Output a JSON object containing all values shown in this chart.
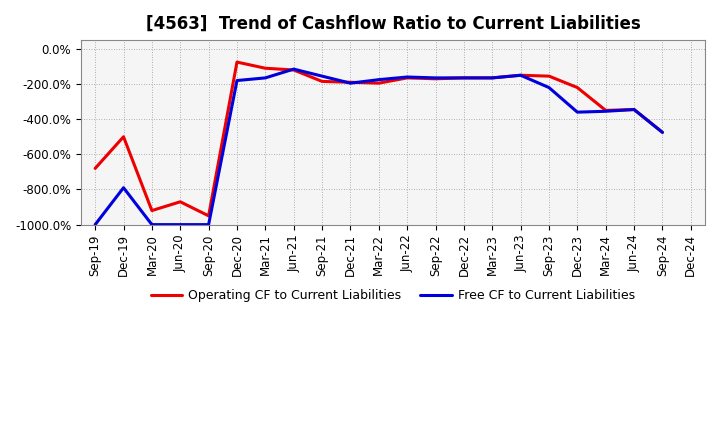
{
  "title": "[4563]  Trend of Cashflow Ratio to Current Liabilities",
  "x_labels": [
    "Sep-19",
    "Dec-19",
    "Mar-20",
    "Jun-20",
    "Sep-20",
    "Dec-20",
    "Mar-21",
    "Jun-21",
    "Sep-21",
    "Dec-21",
    "Mar-22",
    "Jun-22",
    "Sep-22",
    "Dec-22",
    "Mar-23",
    "Jun-23",
    "Sep-23",
    "Dec-23",
    "Mar-24",
    "Jun-24",
    "Sep-24",
    "Dec-24"
  ],
  "operating_cf": [
    -680,
    -500,
    -920,
    -870,
    -950,
    -75,
    -110,
    -120,
    -185,
    -190,
    -195,
    -165,
    -170,
    -165,
    -165,
    -150,
    -155,
    -220,
    -350,
    -345,
    -475,
    null
  ],
  "free_cf": [
    -1000,
    -790,
    -1000,
    -1000,
    -1000,
    -180,
    -165,
    -115,
    -155,
    -195,
    -175,
    -160,
    -165,
    -165,
    -165,
    -150,
    -220,
    -360,
    -355,
    -345,
    -475,
    null
  ],
  "operating_color": "#ee0000",
  "free_color": "#0000dd",
  "ylim": [
    -1000,
    50
  ],
  "yticks": [
    0,
    -200,
    -400,
    -600,
    -800,
    -1000
  ],
  "ytick_labels": [
    "0.0%",
    "-200.0%",
    "-400.0%",
    "-600.0%",
    "-800.0%",
    "-1000.0%"
  ],
  "background_color": "#ffffff",
  "plot_bg_color": "#f5f5f5",
  "grid_color": "#999999",
  "legend_op": "Operating CF to Current Liabilities",
  "legend_free": "Free CF to Current Liabilities",
  "line_width": 2.2,
  "title_fontsize": 12,
  "tick_fontsize": 8.5
}
